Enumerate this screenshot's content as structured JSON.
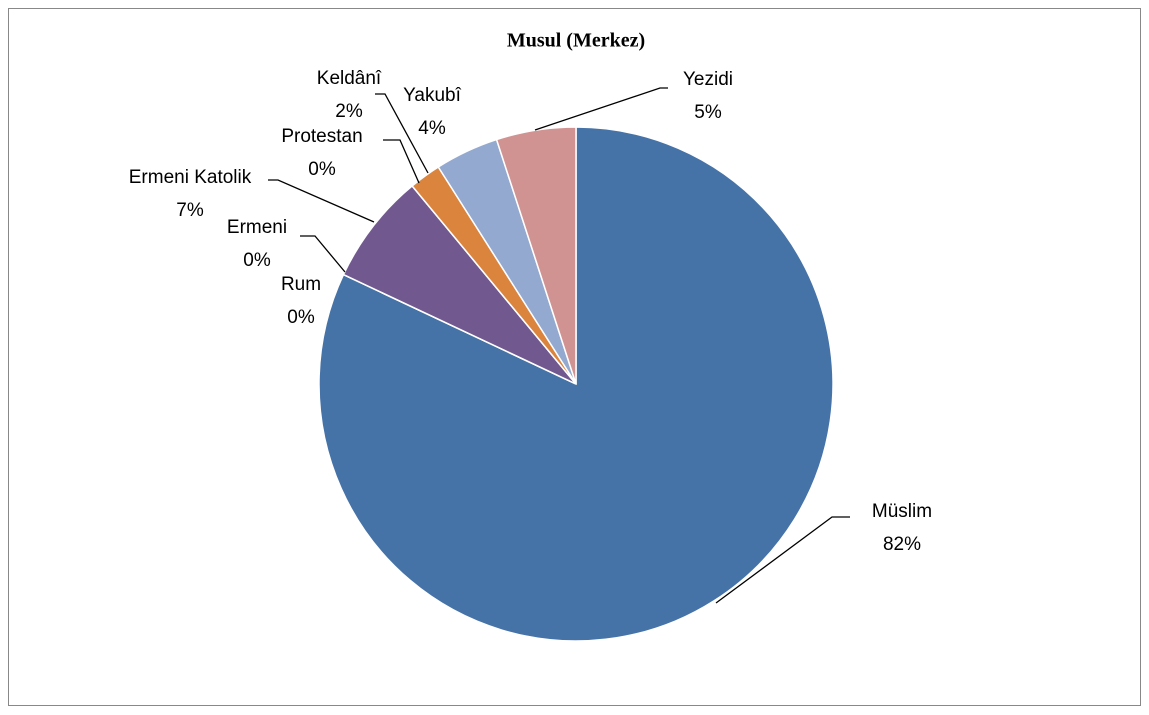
{
  "chart_data": {
    "type": "pie",
    "title": "Musul (Merkez)",
    "categories": [
      "Müslim",
      "Rum",
      "Ermeni",
      "Ermeni Katolik",
      "Protestan",
      "Keldânî",
      "Yakubî",
      "Yezidi"
    ],
    "values": [
      82,
      0,
      0,
      7,
      0,
      2,
      4,
      5
    ],
    "value_labels": [
      "82%",
      "0%",
      "0%",
      "7%",
      "0%",
      "2%",
      "4%",
      "5%"
    ],
    "colors": [
      "#4572a7",
      "#aa4643",
      "#89a54e",
      "#71588f",
      "#4198af",
      "#db843d",
      "#93a9cf",
      "#d19392"
    ]
  }
}
